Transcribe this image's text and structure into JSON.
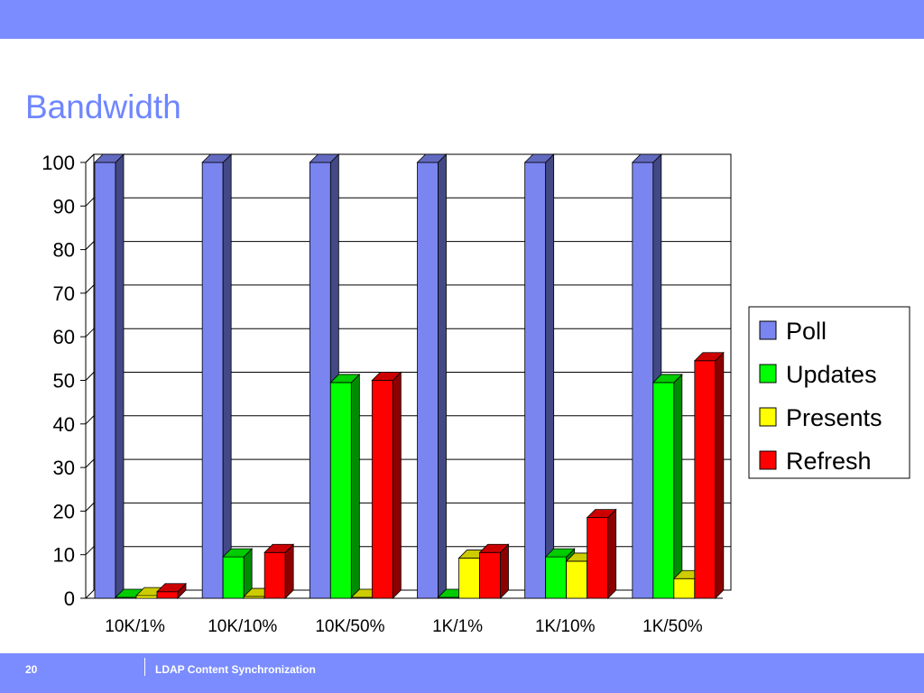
{
  "slide": {
    "title": "Bandwidth",
    "page_number": "20",
    "footer_text": "LDAP Content Synchronization"
  },
  "chart_data": {
    "type": "bar",
    "title": "",
    "xlabel": "",
    "ylabel": "",
    "ylim": [
      0,
      100
    ],
    "yticks": [
      0,
      10,
      20,
      30,
      40,
      50,
      60,
      70,
      80,
      90,
      100
    ],
    "grid": true,
    "legend_position": "right",
    "categories": [
      "10K/1%",
      "10K/10%",
      "10K/50%",
      "1K/1%",
      "1K/10%",
      "1K/50%"
    ],
    "series": [
      {
        "name": "Poll",
        "color": "#7a85f0",
        "values": [
          100,
          100,
          100,
          100,
          100,
          100
        ]
      },
      {
        "name": "Updates",
        "color": "#00ff00",
        "values": [
          0.2,
          9.5,
          49.5,
          0.2,
          9.5,
          49.5
        ]
      },
      {
        "name": "Presents",
        "color": "#ffff00",
        "values": [
          0.6,
          0.4,
          0.2,
          9.2,
          8.5,
          4.5
        ]
      },
      {
        "name": "Refresh",
        "color": "#ff0000",
        "values": [
          1.5,
          10.5,
          50,
          10.5,
          18.5,
          54.5
        ]
      }
    ]
  }
}
